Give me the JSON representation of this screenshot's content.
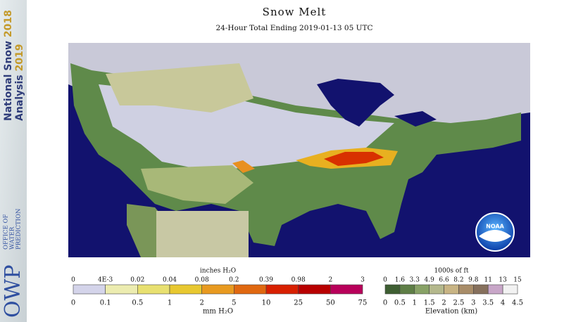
{
  "header": {
    "title": "Snow Melt",
    "subtitle": "24-Hour Total Ending 2019-01-13 05 UTC"
  },
  "sidebar": {
    "product": [
      "National Snow",
      "Analysis"
    ],
    "years": [
      "2018",
      "2019"
    ],
    "office": [
      "OFFICE OF",
      "WATER",
      "PREDICTION"
    ],
    "acronym": "OWP"
  },
  "map": {
    "logo": "NOAA"
  },
  "legend_melt": {
    "top_unit": "inches H₂O",
    "top_labels": [
      "0",
      "4E-3",
      "0.02",
      "0.04",
      "0.08",
      "0.2",
      "0.39",
      "0.98",
      "2",
      "3"
    ],
    "bottom_labels": [
      "0",
      "0.1",
      "0.5",
      "1",
      "2",
      "5",
      "10",
      "25",
      "50",
      "75"
    ],
    "bottom_unit": "mm H₂O",
    "colors": [
      "#d4d4ea",
      "#ecec b0",
      "#e8e070",
      "#e8c830",
      "#e89a20",
      "#e06810",
      "#d82000",
      "#b80000",
      "#b8005a"
    ]
  },
  "legend_elevation": {
    "top_unit": "1000s of ft",
    "top_labels": [
      "0",
      "1.6",
      "3.3",
      "4.9",
      "6.6",
      "8.2",
      "9.8",
      "11",
      "13",
      "15"
    ],
    "bottom_labels": [
      "0",
      "0.5",
      "1",
      "1.5",
      "2",
      "2.5",
      "3",
      "3.5",
      "4",
      "4.5"
    ],
    "bottom_unit": "Elevation (km)",
    "colors": [
      "#3e5e32",
      "#5e7e46",
      "#88a266",
      "#b4b88c",
      "#c8b484",
      "#a88c68",
      "#86705c",
      "#c8a6c8",
      "#f2f2f2"
    ]
  }
}
